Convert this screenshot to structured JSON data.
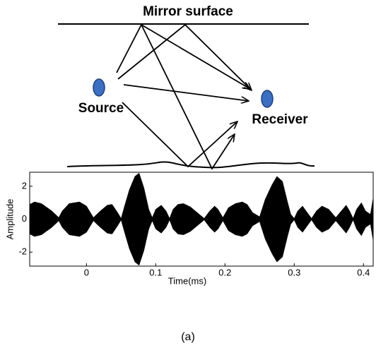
{
  "diagram": {
    "mirror_label": "Mirror surface",
    "source_label": "Source",
    "receiver_label": "Receiver"
  },
  "chart_data": {
    "type": "waveform",
    "xlabel": "Time(ms)",
    "ylabel": "Amplitude",
    "color": "#000000",
    "x": [
      -0.082,
      -0.075,
      -0.065,
      -0.05,
      -0.04,
      -0.035,
      -0.025,
      -0.01,
      0.0,
      0.01,
      0.02,
      0.03,
      0.037,
      0.045,
      0.05,
      0.055,
      0.062,
      0.07,
      0.076,
      0.083,
      0.09,
      0.095,
      0.1,
      0.108,
      0.115,
      0.12,
      0.125,
      0.132,
      0.14,
      0.15,
      0.16,
      0.17,
      0.178,
      0.185,
      0.19,
      0.197,
      0.205,
      0.215,
      0.225,
      0.232,
      0.24,
      0.25,
      0.258,
      0.268,
      0.275,
      0.283,
      0.29,
      0.295,
      0.3,
      0.305,
      0.312,
      0.318,
      0.325,
      0.332,
      0.34,
      0.35,
      0.36,
      0.37,
      0.375,
      0.38,
      0.385,
      0.39,
      0.397,
      0.403,
      0.41,
      0.414
    ],
    "values": [
      0.9,
      1.05,
      0.95,
      0.5,
      0.1,
      0.5,
      0.95,
      1.05,
      0.8,
      0.1,
      0.5,
      0.85,
      0.9,
      0.4,
      0.05,
      0.8,
      1.8,
      2.6,
      2.8,
      1.9,
      0.6,
      0.1,
      0.6,
      0.85,
      0.5,
      0.05,
      0.6,
      0.9,
      0.95,
      0.75,
      0.4,
      0.05,
      0.5,
      0.8,
      0.6,
      0.1,
      0.7,
      0.95,
      1.05,
      0.9,
      0.4,
      0.15,
      1.2,
      2.1,
      2.6,
      2.3,
      1.1,
      0.3,
      0.05,
      0.5,
      0.8,
      0.45,
      0.05,
      0.5,
      0.8,
      0.6,
      0.1,
      0.6,
      0.85,
      0.5,
      0.05,
      0.6,
      1.0,
      0.5,
      0.3,
      1.3
    ],
    "xlim": [
      -0.082,
      0.414
    ],
    "ylim": [
      -2.85,
      2.85
    ],
    "xticks": [
      0,
      0.1,
      0.2,
      0.3,
      0.4
    ],
    "yticks": [
      -2,
      0,
      2
    ]
  },
  "caption": "(a)"
}
